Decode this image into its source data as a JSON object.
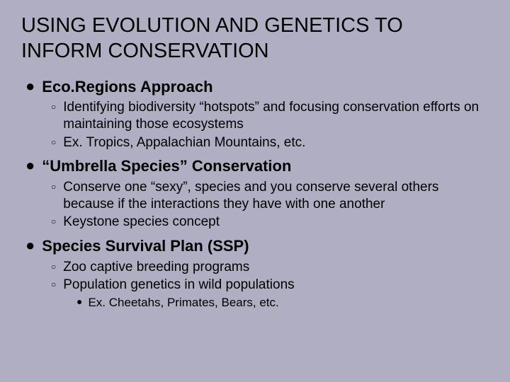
{
  "background_color": "#b0aec2",
  "text_color": "#000000",
  "font_family": "Arial, sans-serif",
  "title": {
    "text": "USING EVOLUTION AND GENETICS TO INFORM CONSERVATION",
    "fontsize": 29,
    "font_weight": "normal"
  },
  "sections": [
    {
      "heading": "Eco.Regions Approach",
      "heading_fontsize": 22,
      "heading_bold": true,
      "sub": [
        {
          "text": "Identifying biodiversity “hotspots” and focusing conservation efforts on maintaining those ecosystems"
        },
        {
          "text": "Ex. Tropics, Appalachian Mountains, etc."
        }
      ]
    },
    {
      "heading": "“Umbrella Species” Conservation",
      "heading_fontsize": 22,
      "heading_bold": true,
      "sub": [
        {
          "text": "Conserve one “sexy”, species and you conserve several others because if the interactions they have with one another"
        },
        {
          "text": "Keystone species concept"
        }
      ]
    },
    {
      "heading": "Species Survival Plan (SSP)",
      "heading_fontsize": 22,
      "heading_bold": true,
      "sub": [
        {
          "text": "Zoo captive breeding programs"
        },
        {
          "text": "Population genetics in wild populations",
          "sub": [
            {
              "text": "Ex. Cheetahs, Primates, Bears, etc."
            }
          ]
        }
      ]
    }
  ],
  "bullets": {
    "level1_glyph": "●",
    "level2_glyph": "○",
    "level3_glyph": "●"
  }
}
